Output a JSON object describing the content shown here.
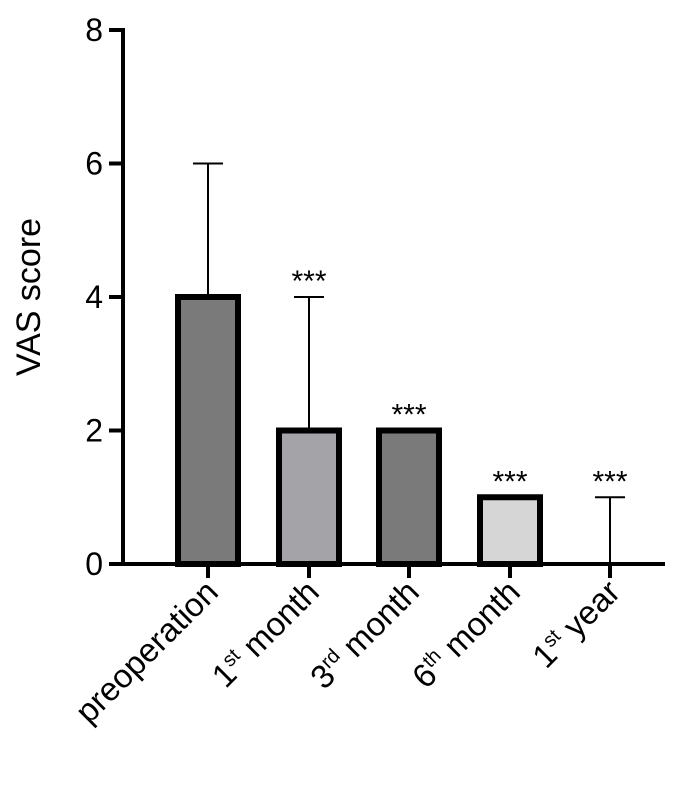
{
  "chart_data": {
    "type": "bar",
    "ylabel": "VAS score",
    "xlabel": "",
    "ylim": [
      0,
      8
    ],
    "yticks": [
      0,
      2,
      4,
      6,
      8
    ],
    "grid": false,
    "categories": [
      {
        "base": "preoperation",
        "sup": "",
        "rest": ""
      },
      {
        "base": "1",
        "sup": "st",
        "rest": " month"
      },
      {
        "base": "3",
        "sup": "rd",
        "rest": " month"
      },
      {
        "base": "6",
        "sup": "th",
        "rest": " month"
      },
      {
        "base": "1",
        "sup": "st",
        "rest": " year"
      }
    ],
    "values": [
      4,
      2,
      2,
      1,
      0
    ],
    "error_upper": [
      6,
      4,
      2,
      1,
      1
    ],
    "significance": [
      "",
      "***",
      "***",
      "***",
      "***"
    ],
    "bar_colors": [
      "#7a7a7a",
      "#a4a4a8",
      "#7a7a7a",
      "#d6d6d6",
      "#ffffff"
    ]
  }
}
